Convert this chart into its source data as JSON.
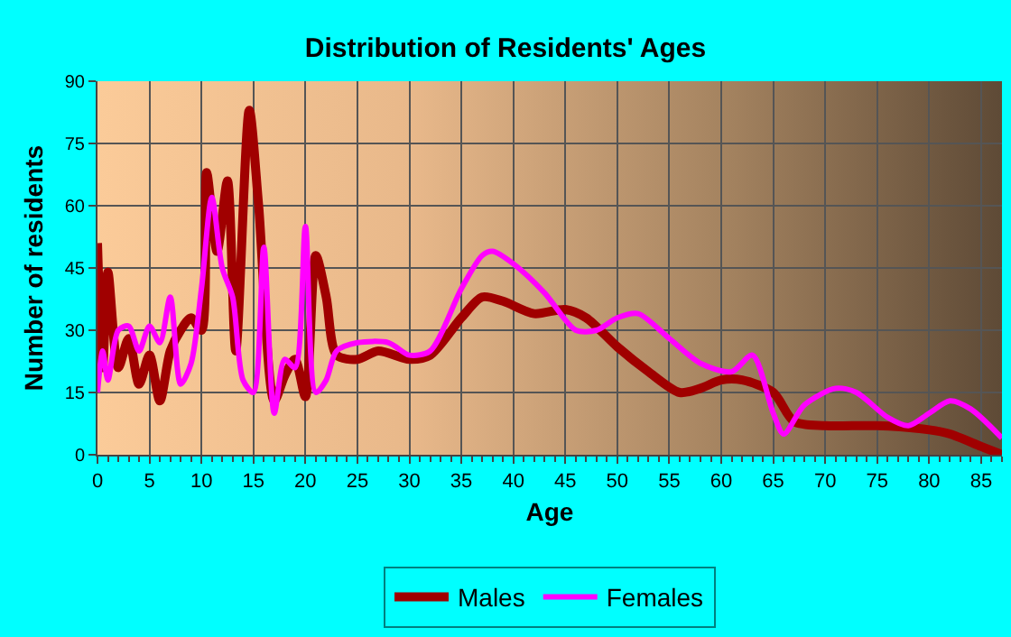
{
  "chart_data": {
    "type": "line",
    "title": "Distribution of Residents' Ages",
    "xlabel": "Age",
    "ylabel": "Number of residents",
    "xlim": [
      0,
      87
    ],
    "xticks": [
      0,
      5,
      10,
      15,
      20,
      25,
      30,
      35,
      40,
      45,
      50,
      55,
      60,
      65,
      70,
      75,
      80,
      85
    ],
    "ylim": [
      0,
      90
    ],
    "yticks": [
      0,
      15,
      30,
      45,
      60,
      75,
      90
    ],
    "grid": true,
    "legend": "bottom",
    "marker": "none",
    "line_style": "solid",
    "series": [
      {
        "name": "Males",
        "color": "#a00000",
        "x": [
          0,
          0.5,
          1,
          2,
          3,
          4,
          5,
          6,
          7,
          8,
          9,
          10,
          10.5,
          11.5,
          12.5,
          13.3,
          14.6,
          15.5,
          17,
          18,
          19,
          20,
          21,
          22,
          23,
          25,
          27,
          30,
          32,
          35,
          37,
          39,
          42,
          45,
          47,
          50,
          53,
          56,
          58,
          60,
          62,
          65,
          67,
          70,
          75,
          80,
          82,
          85,
          87
        ],
        "values": [
          51,
          21,
          44,
          21,
          28,
          17,
          24,
          13,
          25,
          30,
          33,
          30,
          68,
          49,
          66,
          25,
          83,
          60,
          13,
          19,
          23,
          14,
          48,
          38,
          24,
          23,
          25,
          23,
          24,
          33,
          38,
          37,
          34,
          35,
          33,
          26,
          20,
          15,
          16,
          18,
          18,
          15,
          8,
          7,
          7,
          6,
          5,
          2,
          0
        ]
      },
      {
        "name": "Females",
        "color": "#ff00ff",
        "x": [
          0,
          0.5,
          1,
          2,
          3,
          4,
          5,
          6,
          7,
          8,
          9,
          10,
          11,
          12,
          13,
          14,
          15,
          16,
          17,
          18,
          19,
          20,
          21,
          22,
          23,
          25,
          28,
          30,
          32,
          35,
          37,
          38,
          40,
          43,
          46,
          48,
          50,
          52,
          55,
          58,
          61,
          63,
          65,
          66,
          68,
          71,
          73,
          76,
          78,
          80,
          82,
          84,
          87
        ],
        "values": [
          15,
          25,
          18,
          30,
          31,
          25,
          31,
          27,
          38,
          17,
          22,
          40,
          62,
          45,
          38,
          18,
          15,
          50,
          10,
          23,
          21,
          55,
          15,
          18,
          25,
          27,
          27,
          24,
          25,
          40,
          48,
          49,
          46,
          39,
          30,
          30,
          33,
          34,
          28,
          22,
          20,
          24,
          10,
          5,
          12,
          16,
          15,
          9,
          7,
          10,
          13,
          11,
          4
        ]
      }
    ]
  }
}
